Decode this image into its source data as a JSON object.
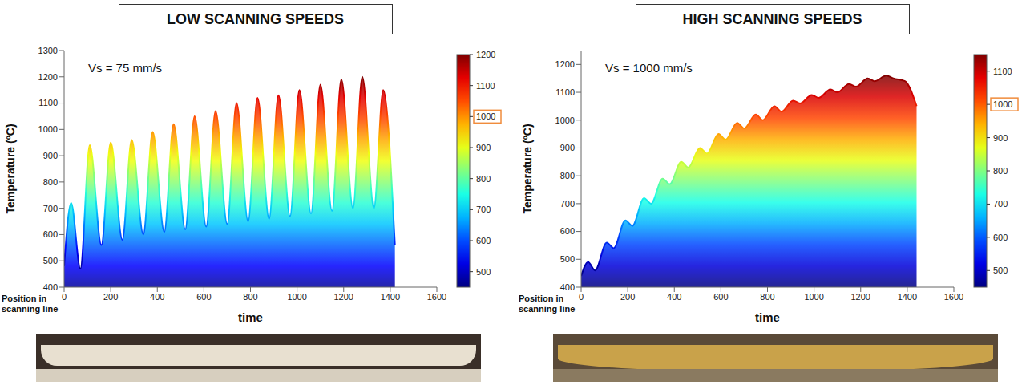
{
  "chart_data": [
    {
      "type": "area",
      "title": "LOW SCANNING SPEEDS",
      "annotation": "Vs = 75 mm/s",
      "x_label": "time",
      "y_label": "Temperature (ºC)",
      "depth_label": "Position in scanning line",
      "x": [
        0,
        30,
        70,
        110,
        160,
        200,
        250,
        290,
        340,
        380,
        430,
        470,
        520,
        560,
        610,
        650,
        700,
        740,
        790,
        830,
        880,
        920,
        970,
        1010,
        1060,
        1100,
        1150,
        1190,
        1240,
        1280,
        1330,
        1370,
        1420
      ],
      "values": [
        480,
        720,
        470,
        940,
        560,
        950,
        580,
        960,
        600,
        990,
        610,
        1020,
        620,
        1050,
        630,
        1070,
        640,
        1100,
        650,
        1120,
        660,
        1130,
        670,
        1150,
        680,
        1170,
        690,
        1190,
        700,
        1200,
        700,
        1150,
        560
      ],
      "xlim": [
        0,
        1600
      ],
      "xticks": [
        0,
        200,
        400,
        600,
        800,
        1000,
        1200,
        1400,
        1600
      ],
      "ylim": [
        400,
        1300
      ],
      "yticks": [
        400,
        500,
        600,
        700,
        800,
        900,
        1000,
        1100,
        1200,
        1300
      ],
      "colorbar": {
        "range": [
          450,
          1200
        ],
        "ticks": [
          500,
          600,
          700,
          800,
          900,
          1000,
          1100,
          1200
        ],
        "highlighted": 1000
      }
    },
    {
      "type": "area",
      "title": "HIGH SCANNING SPEEDS",
      "annotation": "Vs = 1000 mm/s",
      "x_label": "time",
      "y_label": "Temperature (ºC)",
      "depth_label": "Position in scanning line",
      "x": [
        0,
        30,
        60,
        110,
        140,
        190,
        220,
        270,
        300,
        350,
        380,
        430,
        460,
        510,
        540,
        590,
        620,
        670,
        700,
        750,
        780,
        830,
        860,
        910,
        940,
        990,
        1020,
        1070,
        1100,
        1150,
        1180,
        1230,
        1260,
        1310,
        1340,
        1390,
        1440
      ],
      "values": [
        440,
        490,
        460,
        560,
        540,
        640,
        620,
        720,
        700,
        790,
        770,
        850,
        830,
        900,
        880,
        950,
        930,
        990,
        970,
        1020,
        1000,
        1050,
        1030,
        1070,
        1060,
        1090,
        1080,
        1110,
        1100,
        1130,
        1120,
        1150,
        1140,
        1160,
        1150,
        1140,
        1050
      ],
      "xlim": [
        0,
        1600
      ],
      "xticks": [
        0,
        200,
        400,
        600,
        800,
        1000,
        1200,
        1400,
        1600
      ],
      "ylim": [
        400,
        1250
      ],
      "yticks": [
        400,
        500,
        600,
        700,
        800,
        900,
        1000,
        1100,
        1200
      ],
      "colorbar": {
        "range": [
          450,
          1150
        ],
        "ticks": [
          500,
          600,
          700,
          800,
          900,
          1000,
          1100
        ],
        "highlighted": 1000
      }
    }
  ]
}
